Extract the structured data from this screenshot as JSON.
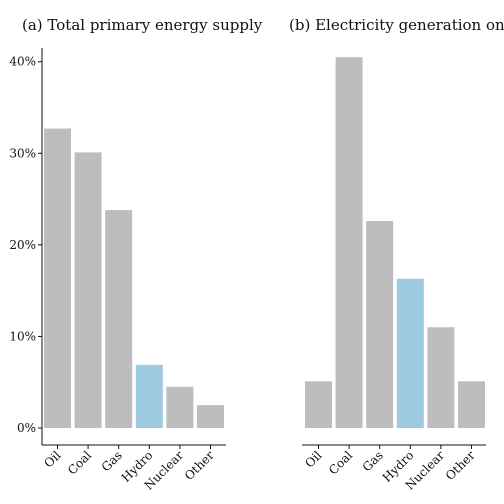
{
  "chart_data": [
    {
      "type": "bar",
      "title": "(a) Total primary energy supply",
      "categories": [
        "Oil",
        "Coal",
        "Gas",
        "Hydro",
        "Nuclear",
        "Other"
      ],
      "values": [
        32.7,
        30.1,
        23.8,
        6.9,
        4.5,
        2.5
      ],
      "ylim": [
        0,
        41.5
      ],
      "yticks": [
        0,
        10,
        20,
        30,
        40
      ],
      "ytick_labels": [
        "0%",
        "10%",
        "20%",
        "30%",
        "40%"
      ],
      "highlight": "Hydro"
    },
    {
      "type": "bar",
      "title": "(b) Electricity generation only",
      "categories": [
        "Oil",
        "Coal",
        "Gas",
        "Hydro",
        "Nuclear",
        "Other"
      ],
      "values": [
        5.1,
        40.5,
        22.6,
        16.3,
        11.0,
        5.1
      ],
      "ylim": [
        0,
        41.5
      ],
      "highlight": "Hydro"
    }
  ],
  "colors": {
    "bar": "#bdbdbd",
    "highlight": "#9ecae1",
    "axis": "#111111"
  }
}
